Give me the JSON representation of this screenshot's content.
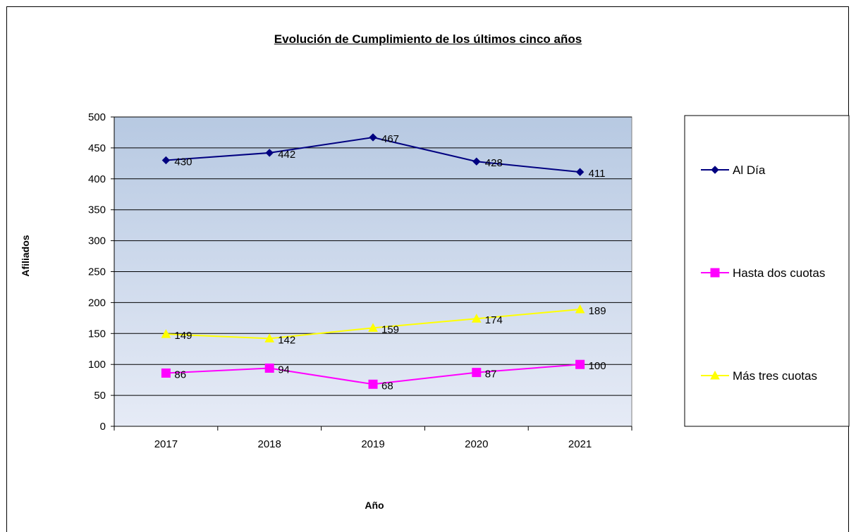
{
  "chart_data": {
    "type": "line",
    "title": "Evolución de Cumplimiento de los últimos cinco años",
    "xlabel": "Año",
    "ylabel": "Afiliados",
    "categories": [
      "2017",
      "2018",
      "2019",
      "2020",
      "2021"
    ],
    "ylim": [
      0,
      500
    ],
    "yticks": [
      0,
      50,
      100,
      150,
      200,
      250,
      300,
      350,
      400,
      450,
      500
    ],
    "grid": true,
    "legend_position": "right",
    "series": [
      {
        "name": "Al Día",
        "values": [
          430,
          442,
          467,
          428,
          411
        ],
        "color": "#000080",
        "marker": "diamond"
      },
      {
        "name": "Hasta dos cuotas",
        "values": [
          86,
          94,
          68,
          87,
          100
        ],
        "color": "#ff00ff",
        "marker": "square"
      },
      {
        "name": "Más tres cuotas",
        "values": [
          149,
          142,
          159,
          174,
          189
        ],
        "color": "#ffff00",
        "marker": "triangle"
      }
    ]
  }
}
